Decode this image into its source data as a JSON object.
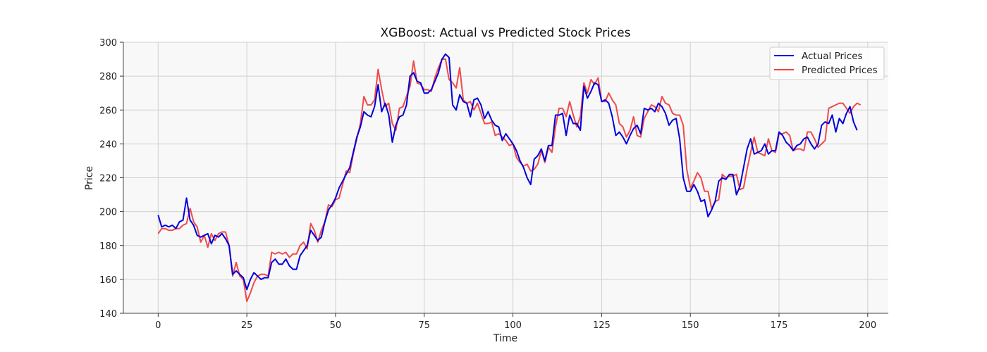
{
  "chart_data": {
    "type": "line",
    "title": "XGBoost: Actual vs Predicted Stock Prices",
    "xlabel": "Time",
    "ylabel": "Price",
    "xlim": [
      -9.8,
      205.8
    ],
    "ylim": [
      140,
      300
    ],
    "xticks": [
      0,
      25,
      50,
      75,
      100,
      125,
      150,
      175,
      200
    ],
    "yticks": [
      140,
      160,
      180,
      200,
      220,
      240,
      260,
      280,
      300
    ],
    "grid": true,
    "legend_position": "top-right",
    "colors": {
      "plot_background": "#f8f8f8",
      "grid": "#d0d0d0"
    },
    "series": [
      {
        "name": "Actual Prices",
        "color": "#0000dd",
        "x_start": 0,
        "x_step": 1,
        "values": [
          198,
          191,
          192,
          191,
          192,
          190,
          194,
          195,
          208,
          195,
          192,
          186,
          185,
          186,
          187,
          181,
          186,
          185,
          187,
          184,
          180,
          163,
          165,
          163,
          161,
          154,
          160,
          164,
          162,
          160,
          161,
          161,
          170,
          172,
          169,
          169,
          172,
          168,
          166,
          166,
          174,
          177,
          180,
          189,
          186,
          183,
          185,
          194,
          201,
          204,
          208,
          214,
          218,
          222,
          226,
          235,
          244,
          250,
          259,
          257,
          256,
          262,
          275,
          259,
          264,
          257,
          241,
          251,
          256,
          257,
          263,
          280,
          282,
          277,
          276,
          270,
          270,
          272,
          277,
          282,
          290,
          293,
          291,
          263,
          260,
          269,
          265,
          264,
          256,
          266,
          267,
          263,
          255,
          259,
          254,
          251,
          250,
          242,
          246,
          243,
          240,
          236,
          230,
          226,
          220,
          216,
          231,
          233,
          237,
          230,
          239,
          239,
          257,
          257,
          258,
          245,
          257,
          252,
          252,
          248,
          274,
          267,
          271,
          276,
          275,
          265,
          266,
          264,
          256,
          245,
          247,
          244,
          240,
          245,
          249,
          251,
          246,
          261,
          260,
          261,
          259,
          264,
          262,
          258,
          251,
          254,
          255,
          243,
          220,
          212,
          212,
          216,
          212,
          206,
          207,
          197,
          201,
          206,
          218,
          220,
          219,
          222,
          222,
          210,
          215,
          226,
          237,
          243,
          234,
          235,
          236,
          240,
          234,
          236,
          236,
          247,
          245,
          241,
          239,
          236,
          239,
          240,
          243,
          244,
          240,
          237,
          240,
          251,
          253,
          252,
          257,
          247,
          255,
          252,
          258,
          262,
          253,
          248
        ]
      },
      {
        "name": "Predicted Prices",
        "color": "#f04040",
        "x_start": 0,
        "x_step": 1,
        "values": [
          187,
          190,
          190,
          189,
          189,
          190,
          190,
          192,
          193,
          202,
          194,
          191,
          182,
          186,
          179,
          187,
          183,
          187,
          188,
          188,
          180,
          162,
          170,
          162,
          160,
          147,
          152,
          158,
          162,
          163,
          163,
          162,
          176,
          175,
          176,
          175,
          176,
          173,
          175,
          175,
          180,
          182,
          178,
          193,
          189,
          182,
          189,
          194,
          204,
          203,
          207,
          208,
          216,
          224,
          223,
          234,
          243,
          252,
          268,
          263,
          263,
          266,
          284,
          272,
          262,
          264,
          252,
          248,
          261,
          262,
          268,
          274,
          289,
          276,
          275,
          272,
          272,
          271,
          279,
          285,
          290,
          290,
          278,
          276,
          273,
          285,
          266,
          264,
          265,
          260,
          264,
          258,
          252,
          252,
          253,
          245,
          246,
          244,
          242,
          239,
          240,
          232,
          229,
          227,
          228,
          224,
          225,
          228,
          236,
          229,
          238,
          235,
          250,
          261,
          261,
          256,
          265,
          257,
          250,
          256,
          276,
          270,
          278,
          275,
          279,
          265,
          265,
          270,
          266,
          263,
          252,
          250,
          244,
          248,
          256,
          245,
          244,
          255,
          259,
          263,
          262,
          259,
          268,
          264,
          263,
          258,
          257,
          257,
          251,
          225,
          214,
          218,
          223,
          220,
          212,
          212,
          202,
          206,
          207,
          222,
          220,
          221,
          221,
          222,
          213,
          214,
          225,
          235,
          244,
          235,
          234,
          233,
          243,
          236,
          235,
          246,
          246,
          247,
          245,
          236,
          237,
          237,
          236,
          247,
          247,
          243,
          238,
          240,
          242,
          261,
          262,
          263,
          264,
          264,
          261,
          258,
          262,
          264,
          263
        ]
      }
    ]
  }
}
